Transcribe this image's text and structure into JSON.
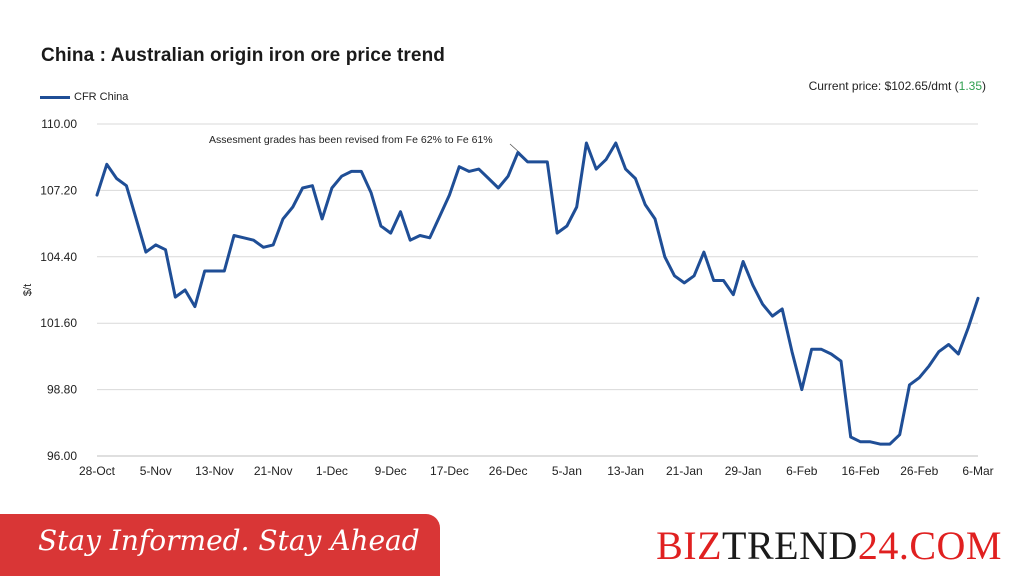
{
  "header": {
    "title": "China : Australian origin iron ore price trend",
    "current_price_label": "Current price: $102.65/dmt (",
    "current_price_change": "1.35",
    "current_price_close": ")"
  },
  "footer": {
    "slogan": "Stay Informed. Stay Ahead",
    "brand_a": "BIZ",
    "brand_b": "TREND",
    "brand_c": "24.COM"
  },
  "colors": {
    "series": "#1f4e96",
    "gridline": "#d9d9d9",
    "banner": "#d93636",
    "brand_red": "#e02020",
    "change_green": "#2e9e4f"
  },
  "chart_data": {
    "type": "line",
    "title": "China : Australian origin iron ore price trend",
    "ylabel": "$/t",
    "xlabel": "",
    "ylim": [
      96.0,
      110.0
    ],
    "yticks": [
      "96.00",
      "98.80",
      "101.60",
      "104.40",
      "107.20",
      "110.00"
    ],
    "xtick_labels": [
      "28-Oct",
      "5-Nov",
      "13-Nov",
      "21-Nov",
      "1-Dec",
      "9-Dec",
      "17-Dec",
      "26-Dec",
      "5-Jan",
      "13-Jan",
      "21-Jan",
      "29-Jan",
      "6-Feb",
      "16-Feb",
      "26-Feb",
      "6-Mar"
    ],
    "legend": "top-left",
    "grid": "horizontal",
    "annotation": "Assesment grades has been revised from Fe 62% to Fe 61%",
    "series": [
      {
        "name": "CFR China",
        "values": [
          107.0,
          108.3,
          107.7,
          107.4,
          106.0,
          104.6,
          104.9,
          104.7,
          102.7,
          103.0,
          102.3,
          103.8,
          103.8,
          103.8,
          105.3,
          105.2,
          105.1,
          104.8,
          104.9,
          106.0,
          106.5,
          107.3,
          107.4,
          106.0,
          107.3,
          107.8,
          108.0,
          108.0,
          107.1,
          105.7,
          105.4,
          106.3,
          105.1,
          105.3,
          105.2,
          106.1,
          107.0,
          108.2,
          108.0,
          108.1,
          107.7,
          107.3,
          107.8,
          108.8,
          108.4,
          108.4,
          108.4,
          105.4,
          105.7,
          106.5,
          109.2,
          108.1,
          108.5,
          109.2,
          108.1,
          107.7,
          106.6,
          106.0,
          104.4,
          103.6,
          103.3,
          103.6,
          104.6,
          103.4,
          103.4,
          102.8,
          104.2,
          103.2,
          102.4,
          101.9,
          102.2,
          100.4,
          98.8,
          100.5,
          100.5,
          100.3,
          100.0,
          96.8,
          96.6,
          96.6,
          96.5,
          96.5,
          96.9,
          99.0,
          99.3,
          99.8,
          100.4,
          100.7,
          100.3,
          101.4,
          102.65
        ]
      }
    ]
  }
}
